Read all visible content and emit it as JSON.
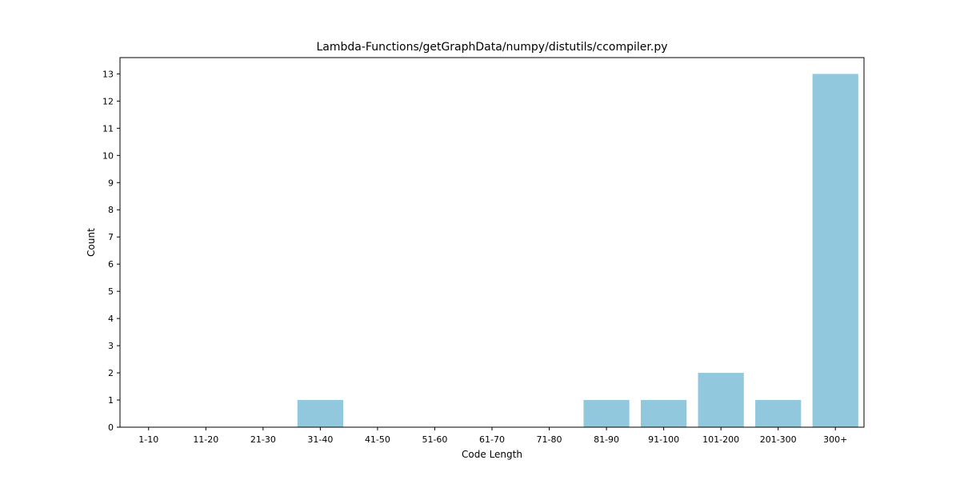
{
  "chart_data": {
    "type": "bar",
    "title": "Lambda-Functions/getGraphData/numpy/distutils/ccompiler.py",
    "xlabel": "Code Length",
    "ylabel": "Count",
    "categories": [
      "1-10",
      "11-20",
      "21-30",
      "31-40",
      "41-50",
      "51-60",
      "61-70",
      "71-80",
      "81-90",
      "91-100",
      "101-200",
      "201-300",
      "300+"
    ],
    "values": [
      0,
      0,
      0,
      1,
      0,
      0,
      0,
      0,
      1,
      1,
      2,
      1,
      13
    ],
    "ylim": [
      0,
      13.6
    ],
    "yticks": [
      0,
      1,
      2,
      3,
      4,
      5,
      6,
      7,
      8,
      9,
      10,
      11,
      12,
      13
    ],
    "grid": false,
    "bar_color": "#92c8dd",
    "axis_color": "#000000"
  }
}
